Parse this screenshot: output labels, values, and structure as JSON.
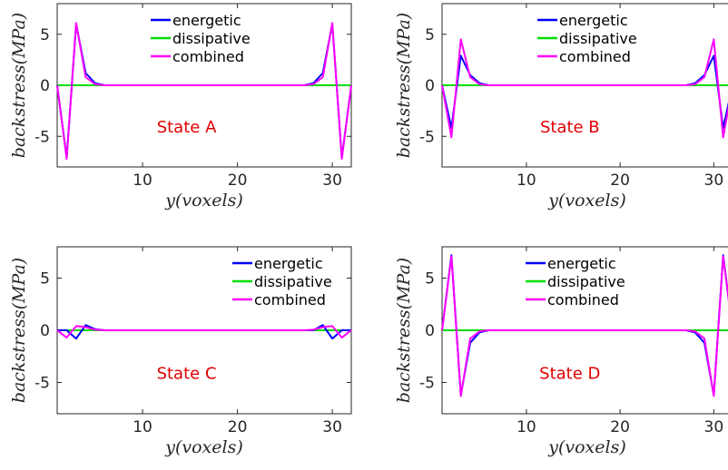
{
  "colors": {
    "energetic": "#0000ff",
    "dissipative": "#00dd00",
    "combined": "#ff00ff",
    "state_label": "#e00000",
    "axis": "#262626"
  },
  "chart_data": [
    {
      "type": "line",
      "title": "",
      "annotation": "State A",
      "xlabel": "y(voxels)",
      "ylabel": "backstress(MPa)",
      "xlim": [
        1,
        32
      ],
      "ylim": [
        -8,
        8
      ],
      "xticks": [
        10,
        20,
        30
      ],
      "yticks": [
        -5,
        0,
        5
      ],
      "legend": "top-center",
      "x": [
        1,
        2,
        3,
        4,
        5,
        6,
        7,
        8,
        9,
        10,
        11,
        12,
        13,
        14,
        15,
        16,
        17,
        18,
        19,
        20,
        21,
        22,
        23,
        24,
        25,
        26,
        27,
        28,
        29,
        30,
        31,
        32
      ],
      "series": [
        {
          "name": "energetic",
          "values": [
            0,
            -7.1,
            6.0,
            1.2,
            0.2,
            0,
            0,
            0,
            0,
            0,
            0,
            0,
            0,
            0,
            0,
            0,
            0,
            0,
            0,
            0,
            0,
            0,
            0,
            0,
            0,
            0,
            0,
            0.2,
            1.2,
            6.0,
            -7.1,
            0
          ]
        },
        {
          "name": "dissipative",
          "values": [
            0,
            0,
            0,
            0,
            0,
            0,
            0,
            0,
            0,
            0,
            0,
            0,
            0,
            0,
            0,
            0,
            0,
            0,
            0,
            0,
            0,
            0,
            0,
            0,
            0,
            0,
            0,
            0,
            0,
            0,
            0,
            0
          ]
        },
        {
          "name": "combined",
          "values": [
            0,
            -7.2,
            6.1,
            0.8,
            0.1,
            0,
            0,
            0,
            0,
            0,
            0,
            0,
            0,
            0,
            0,
            0,
            0,
            0,
            0,
            0,
            0,
            0,
            0,
            0,
            0,
            0,
            0,
            0.1,
            0.8,
            6.1,
            -7.2,
            0
          ]
        }
      ]
    },
    {
      "type": "line",
      "title": "",
      "annotation": "State B",
      "xlabel": "y(voxels)",
      "ylabel": "backstress(MPa)",
      "xlim": [
        1,
        32
      ],
      "ylim": [
        -8,
        8
      ],
      "xticks": [
        10,
        20,
        30
      ],
      "yticks": [
        -5,
        0,
        5
      ],
      "legend": "top-center",
      "x": [
        1,
        2,
        3,
        4,
        5,
        6,
        7,
        8,
        9,
        10,
        11,
        12,
        13,
        14,
        15,
        16,
        17,
        18,
        19,
        20,
        21,
        22,
        23,
        24,
        25,
        26,
        27,
        28,
        29,
        30,
        31,
        32
      ],
      "series": [
        {
          "name": "energetic",
          "values": [
            0,
            -4.2,
            2.9,
            1.0,
            0.2,
            0,
            0,
            0,
            0,
            0,
            0,
            0,
            0,
            0,
            0,
            0,
            0,
            0,
            0,
            0,
            0,
            0,
            0,
            0,
            0,
            0,
            0,
            0.2,
            1.0,
            2.9,
            -4.2,
            0
          ]
        },
        {
          "name": "dissipative",
          "values": [
            0,
            0,
            0,
            0,
            0,
            0,
            0,
            0,
            0,
            0,
            0,
            0,
            0,
            0,
            0,
            0,
            0,
            0,
            0,
            0,
            0,
            0,
            0,
            0,
            0,
            0,
            0,
            0,
            0,
            0,
            0,
            0
          ]
        },
        {
          "name": "combined",
          "values": [
            0,
            -5.1,
            4.5,
            0.8,
            0.1,
            0,
            0,
            0,
            0,
            0,
            0,
            0,
            0,
            0,
            0,
            0,
            0,
            0,
            0,
            0,
            0,
            0,
            0,
            0,
            0,
            0,
            0,
            0.1,
            0.8,
            4.5,
            -5.1,
            0
          ]
        }
      ]
    },
    {
      "type": "line",
      "title": "",
      "annotation": "State C",
      "xlabel": "y(voxels)",
      "ylabel": "backstress(MPa)",
      "xlim": [
        1,
        32
      ],
      "ylim": [
        -8,
        8
      ],
      "xticks": [
        10,
        20,
        30
      ],
      "yticks": [
        -5,
        0,
        5
      ],
      "legend": "top-right",
      "x": [
        1,
        2,
        3,
        4,
        5,
        6,
        7,
        8,
        9,
        10,
        11,
        12,
        13,
        14,
        15,
        16,
        17,
        18,
        19,
        20,
        21,
        22,
        23,
        24,
        25,
        26,
        27,
        28,
        29,
        30,
        31,
        32
      ],
      "series": [
        {
          "name": "energetic",
          "values": [
            0,
            0,
            -0.8,
            0.5,
            0.1,
            0,
            0,
            0,
            0,
            0,
            0,
            0,
            0,
            0,
            0,
            0,
            0,
            0,
            0,
            0,
            0,
            0,
            0,
            0,
            0,
            0,
            0,
            0,
            0.5,
            -0.8,
            0,
            0
          ]
        },
        {
          "name": "dissipative",
          "values": [
            0,
            0,
            0,
            0,
            0,
            0,
            0,
            0,
            0,
            0,
            0,
            0,
            0,
            0,
            0,
            0,
            0,
            0,
            0,
            0,
            0,
            0,
            0,
            0,
            0,
            0,
            0,
            0,
            0,
            0,
            0,
            0
          ]
        },
        {
          "name": "combined",
          "values": [
            0,
            -0.7,
            0.4,
            0.3,
            0.05,
            0,
            0,
            0,
            0,
            0,
            0,
            0,
            0,
            0,
            0,
            0,
            0,
            0,
            0,
            0,
            0,
            0,
            0,
            0,
            0,
            0,
            0,
            0.05,
            0.3,
            0.4,
            -0.7,
            0
          ]
        }
      ]
    },
    {
      "type": "line",
      "title": "",
      "annotation": "State D",
      "xlabel": "y(voxels)",
      "ylabel": "backstress(MPa)",
      "xlim": [
        1,
        32
      ],
      "ylim": [
        -8,
        8
      ],
      "xticks": [
        10,
        20,
        30
      ],
      "yticks": [
        -5,
        0,
        5
      ],
      "legend": "top-center",
      "x": [
        1,
        2,
        3,
        4,
        5,
        6,
        7,
        8,
        9,
        10,
        11,
        12,
        13,
        14,
        15,
        16,
        17,
        18,
        19,
        20,
        21,
        22,
        23,
        24,
        25,
        26,
        27,
        28,
        29,
        30,
        31,
        32
      ],
      "series": [
        {
          "name": "energetic",
          "values": [
            0,
            7.2,
            -6.2,
            -1.2,
            -0.2,
            0,
            0,
            0,
            0,
            0,
            0,
            0,
            0,
            0,
            0,
            0,
            0,
            0,
            0,
            0,
            0,
            0,
            0,
            0,
            0,
            0,
            0,
            -0.2,
            -1.2,
            -6.2,
            7.2,
            0
          ]
        },
        {
          "name": "dissipative",
          "values": [
            0,
            0,
            0,
            0,
            0,
            0,
            0,
            0,
            0,
            0,
            0,
            0,
            0,
            0,
            0,
            0,
            0,
            0,
            0,
            0,
            0,
            0,
            0,
            0,
            0,
            0,
            0,
            0,
            0,
            0,
            0,
            0
          ]
        },
        {
          "name": "combined",
          "values": [
            0,
            7.1,
            -6.3,
            -0.8,
            -0.1,
            0,
            0,
            0,
            0,
            0,
            0,
            0,
            0,
            0,
            0,
            0,
            0,
            0,
            0,
            0,
            0,
            0,
            0,
            0,
            0,
            0,
            0,
            -0.1,
            -0.8,
            -6.3,
            7.1,
            0
          ]
        }
      ]
    }
  ]
}
